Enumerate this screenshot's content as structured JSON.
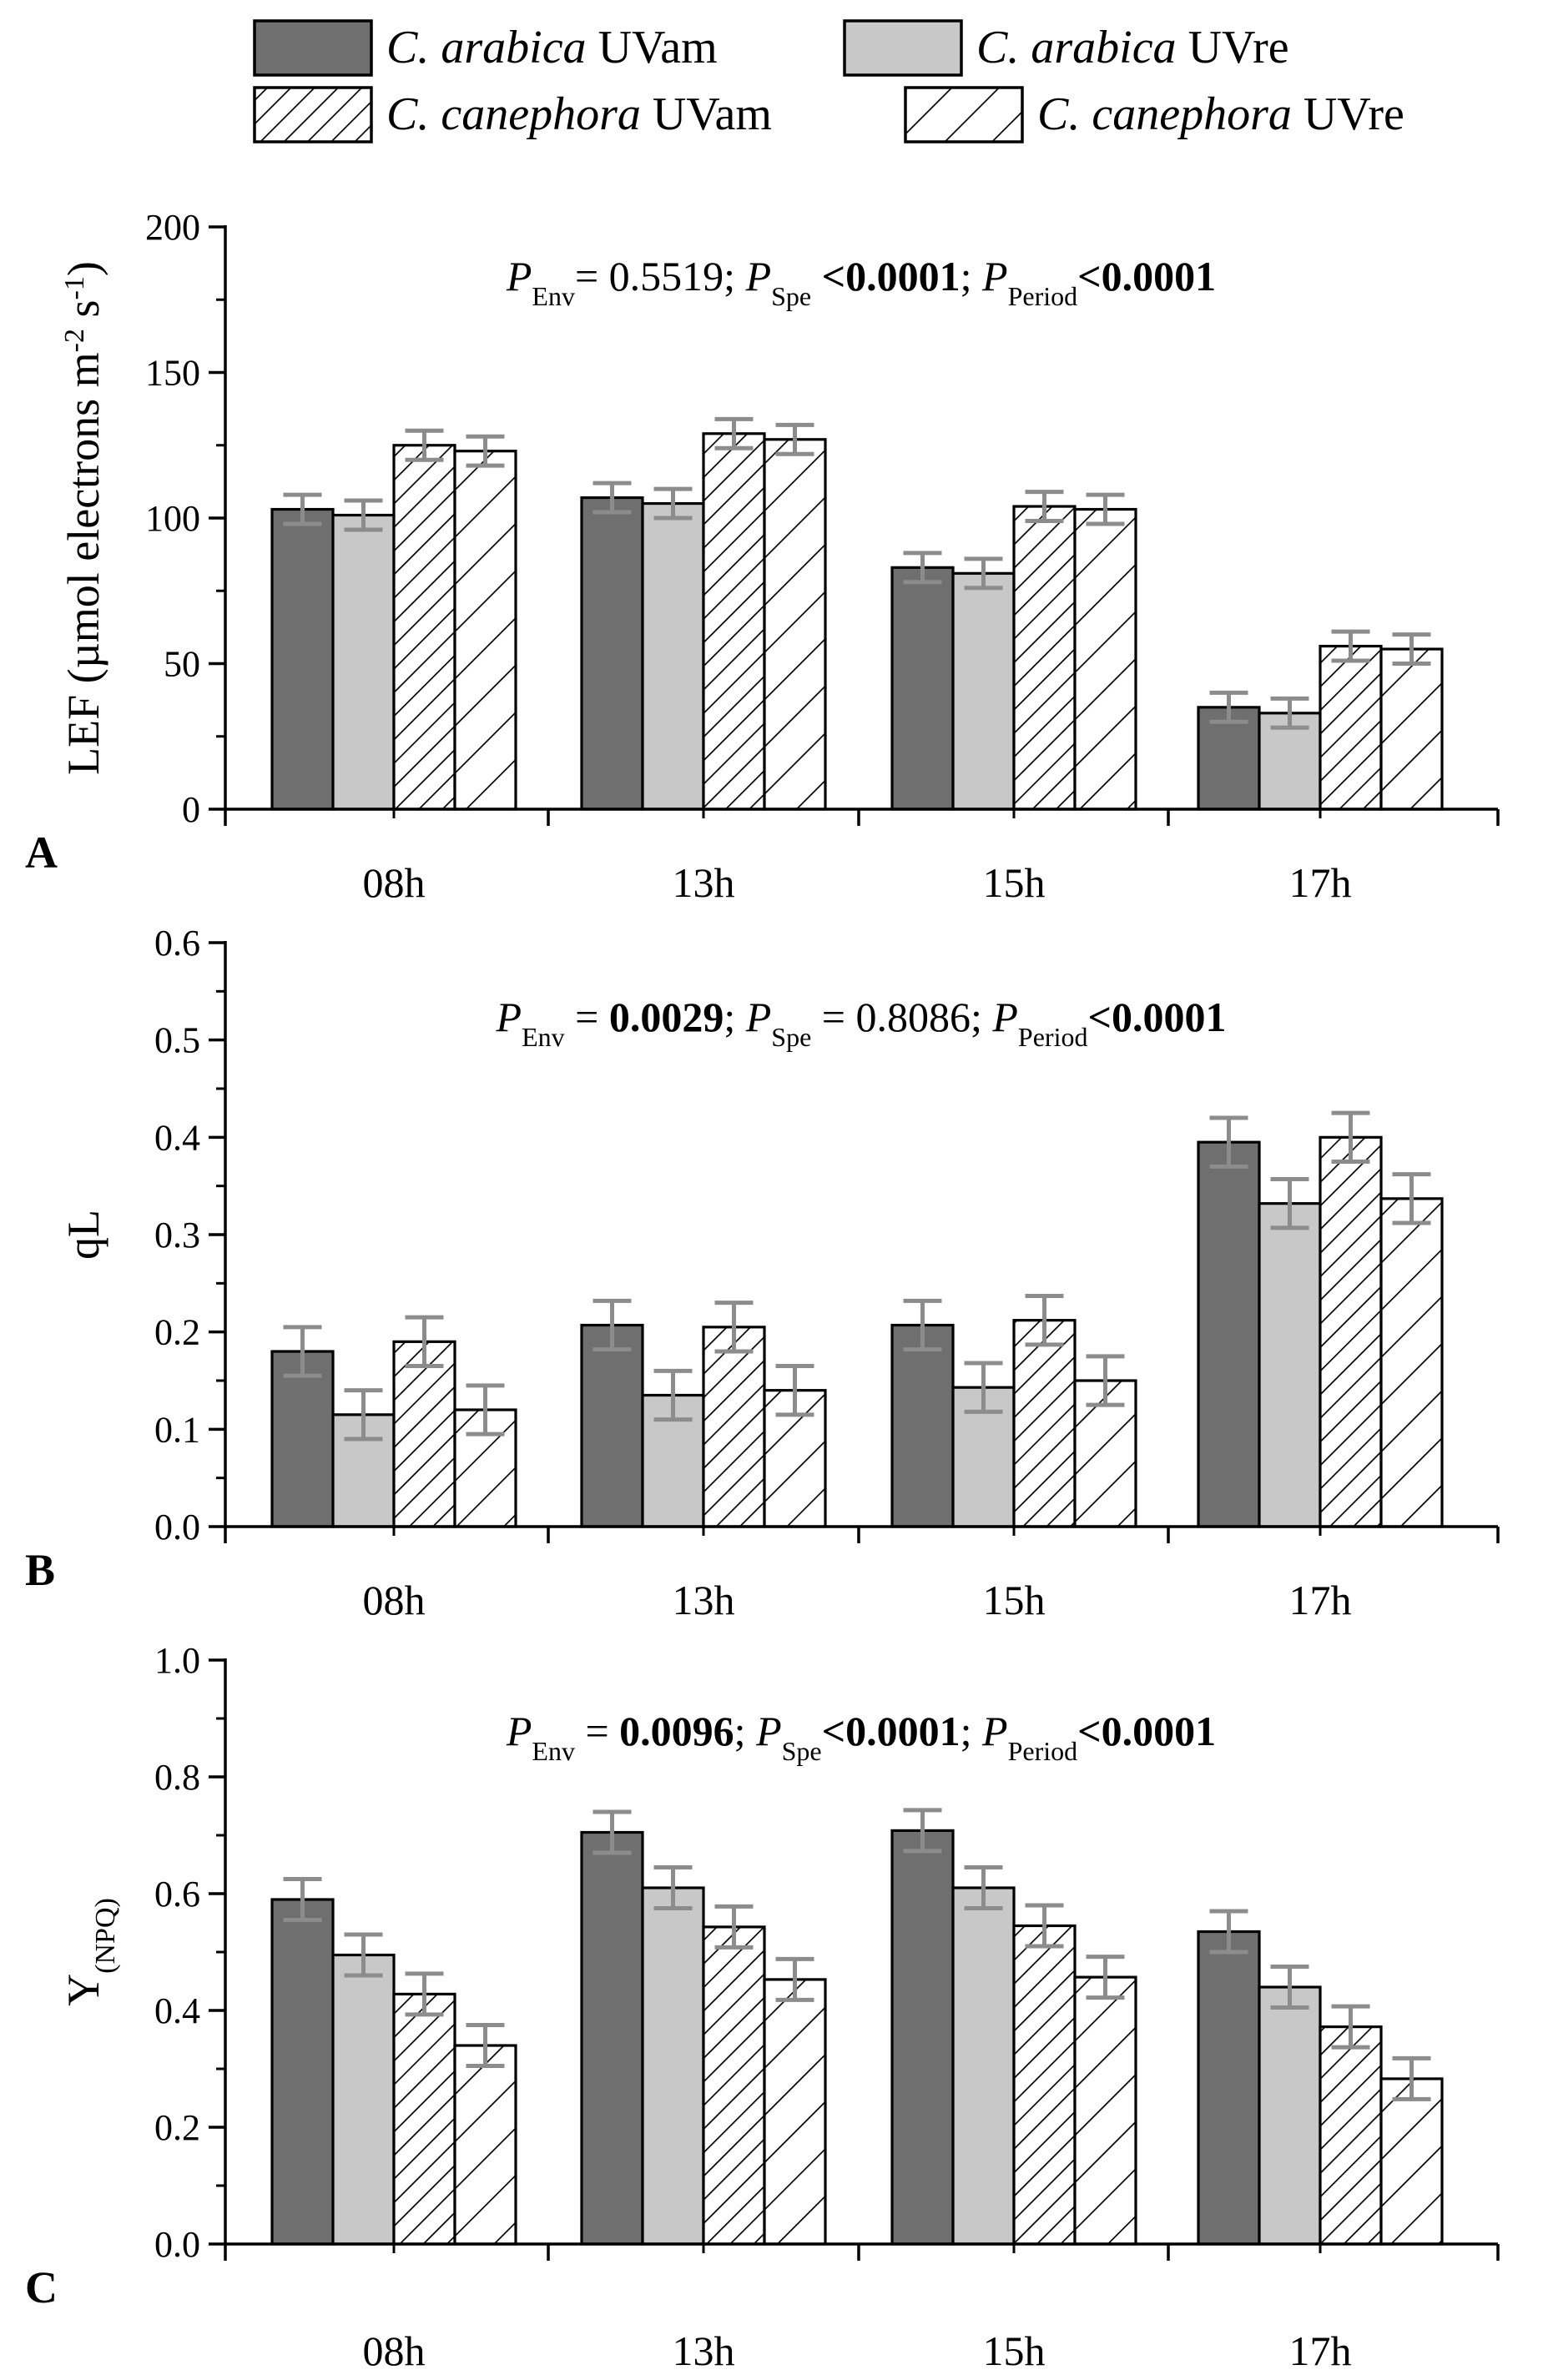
{
  "legend": [
    {
      "key": "ca_am",
      "species": "C. arabica",
      "treatment": "UVam",
      "fill": "#6f6f6f",
      "hatch": false
    },
    {
      "key": "ca_re",
      "species": "C. arabica",
      "treatment": "UVre",
      "fill": "#c8c8c8",
      "hatch": false
    },
    {
      "key": "cc_am",
      "species": "C. canephora",
      "treatment": "UVam",
      "fill": "#ffffff",
      "hatch": "dense"
    },
    {
      "key": "cc_re",
      "species": "C. canephora",
      "treatment": "UVre",
      "fill": "#ffffff",
      "hatch": "sparse"
    }
  ],
  "colors": {
    "errorbar": "#8c8c8c",
    "axis": "#000000",
    "bar_outline": "#000000"
  },
  "chart_data": [
    {
      "type": "bar",
      "panel": "A",
      "ylabel": "LEF (µmol electrons m",
      "ylabel_sup1": "-2",
      "ylabel_mid": " s",
      "ylabel_sup2": "-1",
      "ylabel_end": ")",
      "ylim": [
        0,
        200
      ],
      "yticks": [
        0,
        50,
        100,
        150,
        200
      ],
      "ytick_labels": [
        "0",
        "50",
        "100",
        "150",
        "200"
      ],
      "categories": [
        "08h",
        "13h",
        "15h",
        "17h"
      ],
      "stats": [
        {
          "sym": "P",
          "sub": "Env",
          "op": "= ",
          "val": "0.5519",
          "bold": false,
          "sep": "; "
        },
        {
          "sym": "P",
          "sub": "Spe",
          "op": " ",
          "val": "<0.0001",
          "bold": true,
          "sep": "; "
        },
        {
          "sym": "P",
          "sub": "Period",
          "op": "",
          "val": "<0.0001",
          "bold": true,
          "sep": ""
        }
      ],
      "series": [
        {
          "key": "ca_am",
          "values": [
            103,
            107,
            83,
            35
          ],
          "errors": [
            5,
            5,
            5,
            5
          ]
        },
        {
          "key": "ca_re",
          "values": [
            101,
            105,
            81,
            33
          ],
          "errors": [
            5,
            5,
            5,
            5
          ]
        },
        {
          "key": "cc_am",
          "values": [
            125,
            129,
            104,
            56
          ],
          "errors": [
            5,
            5,
            5,
            5
          ]
        },
        {
          "key": "cc_re",
          "values": [
            123,
            127,
            103,
            55
          ],
          "errors": [
            5,
            5,
            5,
            5
          ]
        }
      ]
    },
    {
      "type": "bar",
      "panel": "B",
      "ylabel": "qL",
      "ylim": [
        0,
        0.6
      ],
      "yticks": [
        0,
        0.1,
        0.2,
        0.3,
        0.4,
        0.5,
        0.6
      ],
      "ytick_labels": [
        "0.0",
        "0.1",
        "0.2",
        "0.3",
        "0.4",
        "0.5",
        "0.6"
      ],
      "categories": [
        "08h",
        "13h",
        "15h",
        "17h"
      ],
      "stats": [
        {
          "sym": "P",
          "sub": "Env",
          "op": " = ",
          "val": "0.0029",
          "bold": true,
          "sep": "; "
        },
        {
          "sym": "P",
          "sub": "Spe",
          "op": " = ",
          "val": "0.8086",
          "bold": false,
          "sep": "; "
        },
        {
          "sym": "P",
          "sub": "Period",
          "op": "",
          "val": "<0.0001",
          "bold": true,
          "sep": ""
        }
      ],
      "series": [
        {
          "key": "ca_am",
          "values": [
            0.18,
            0.207,
            0.207,
            0.395
          ],
          "errors": [
            0.025,
            0.025,
            0.025,
            0.025
          ]
        },
        {
          "key": "ca_re",
          "values": [
            0.115,
            0.135,
            0.143,
            0.332
          ],
          "errors": [
            0.025,
            0.025,
            0.025,
            0.025
          ]
        },
        {
          "key": "cc_am",
          "values": [
            0.19,
            0.205,
            0.212,
            0.4
          ],
          "errors": [
            0.025,
            0.025,
            0.025,
            0.025
          ]
        },
        {
          "key": "cc_re",
          "values": [
            0.12,
            0.14,
            0.15,
            0.337
          ],
          "errors": [
            0.025,
            0.025,
            0.025,
            0.025
          ]
        }
      ]
    },
    {
      "type": "bar",
      "panel": "C",
      "ylabel": "Y",
      "ylabel_sub": "(NPQ)",
      "ylim": [
        0,
        1.0
      ],
      "yticks": [
        0,
        0.2,
        0.4,
        0.6,
        0.8,
        1.0
      ],
      "ytick_labels": [
        "0.0",
        "0.2",
        "0.4",
        "0.6",
        "0.8",
        "1.0"
      ],
      "categories": [
        "08h",
        "13h",
        "15h",
        "17h"
      ],
      "stats": [
        {
          "sym": "P",
          "sub": "Env",
          "op": " = ",
          "val": "0.0096",
          "bold": true,
          "sep": "; "
        },
        {
          "sym": "P",
          "sub": "Spe",
          "op": "",
          "val": "<0.0001",
          "bold": true,
          "sep": "; "
        },
        {
          "sym": "P",
          "sub": "Period",
          "op": "",
          "val": "<0.0001",
          "bold": true,
          "sep": ""
        }
      ],
      "series": [
        {
          "key": "ca_am",
          "values": [
            0.59,
            0.705,
            0.708,
            0.535
          ],
          "errors": [
            0.035,
            0.035,
            0.035,
            0.035
          ]
        },
        {
          "key": "ca_re",
          "values": [
            0.495,
            0.61,
            0.61,
            0.44
          ],
          "errors": [
            0.035,
            0.035,
            0.035,
            0.035
          ]
        },
        {
          "key": "cc_am",
          "values": [
            0.428,
            0.543,
            0.545,
            0.372
          ],
          "errors": [
            0.035,
            0.035,
            0.035,
            0.035
          ]
        },
        {
          "key": "cc_re",
          "values": [
            0.34,
            0.453,
            0.457,
            0.283
          ],
          "errors": [
            0.035,
            0.035,
            0.035,
            0.035
          ]
        }
      ]
    }
  ]
}
